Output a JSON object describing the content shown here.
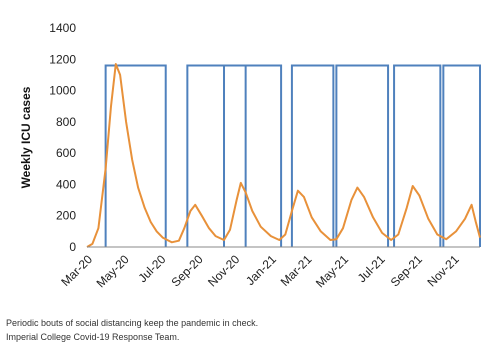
{
  "chart_data": {
    "type": "line",
    "ylabel": "Weekly ICU cases",
    "ylim": [
      0,
      1400
    ],
    "yticks": [
      "0",
      "200",
      "400",
      "600",
      "800",
      "1000",
      "1200",
      "1400"
    ],
    "xticks": [
      "Mar-20",
      "May-20",
      "Jul-20",
      "Sep-20",
      "Nov-20",
      "Jan-21",
      "Mar-21",
      "May-21",
      "Jul-21",
      "Sep-21",
      "Nov-21"
    ],
    "xlim": [
      "2020-03-01",
      "2021-12-15"
    ],
    "grid": false,
    "legend": "none",
    "series": [
      {
        "kind": "step",
        "color": "#4f81bd",
        "intervals": [
          {
            "on": "2020-04-01",
            "off": "2020-07-10",
            "level": 1160
          },
          {
            "on": "2020-08-15",
            "off": "2020-11-20",
            "level": 1160
          },
          {
            "on": "2020-10-15",
            "off": "2021-01-18",
            "level": 1160
          },
          {
            "on": "2021-02-05",
            "off": "2021-04-15",
            "level": 1160
          },
          {
            "on": "2021-04-20",
            "off": "2021-07-15",
            "level": 1160
          },
          {
            "on": "2021-07-25",
            "off": "2021-10-10",
            "level": 1160
          },
          {
            "on": "2021-10-15",
            "off": "2021-12-15",
            "level": 1160
          }
        ]
      },
      {
        "kind": "line",
        "color": "#e8913a",
        "points": [
          [
            "2020-03-01",
            0
          ],
          [
            "2020-03-10",
            20
          ],
          [
            "2020-03-20",
            120
          ],
          [
            "2020-04-01",
            500
          ],
          [
            "2020-04-10",
            900
          ],
          [
            "2020-04-18",
            1170
          ],
          [
            "2020-04-25",
            1100
          ],
          [
            "2020-05-05",
            800
          ],
          [
            "2020-05-15",
            560
          ],
          [
            "2020-05-25",
            380
          ],
          [
            "2020-06-05",
            250
          ],
          [
            "2020-06-15",
            160
          ],
          [
            "2020-06-25",
            100
          ],
          [
            "2020-07-05",
            60
          ],
          [
            "2020-07-20",
            30
          ],
          [
            "2020-08-01",
            40
          ],
          [
            "2020-08-10",
            120
          ],
          [
            "2020-08-20",
            230
          ],
          [
            "2020-08-28",
            270
          ],
          [
            "2020-09-08",
            200
          ],
          [
            "2020-09-20",
            120
          ],
          [
            "2020-10-01",
            70
          ],
          [
            "2020-10-15",
            45
          ],
          [
            "2020-10-25",
            110
          ],
          [
            "2020-11-05",
            300
          ],
          [
            "2020-11-12",
            410
          ],
          [
            "2020-11-20",
            350
          ],
          [
            "2020-12-01",
            230
          ],
          [
            "2020-12-15",
            130
          ],
          [
            "2021-01-01",
            70
          ],
          [
            "2021-01-15",
            45
          ],
          [
            "2021-01-25",
            80
          ],
          [
            "2021-02-05",
            230
          ],
          [
            "2021-02-15",
            360
          ],
          [
            "2021-02-25",
            320
          ],
          [
            "2021-03-10",
            190
          ],
          [
            "2021-03-25",
            100
          ],
          [
            "2021-04-10",
            45
          ],
          [
            "2021-04-20",
            50
          ],
          [
            "2021-05-01",
            120
          ],
          [
            "2021-05-15",
            300
          ],
          [
            "2021-05-25",
            380
          ],
          [
            "2021-06-05",
            320
          ],
          [
            "2021-06-20",
            190
          ],
          [
            "2021-07-05",
            90
          ],
          [
            "2021-07-20",
            45
          ],
          [
            "2021-08-01",
            80
          ],
          [
            "2021-08-15",
            250
          ],
          [
            "2021-08-25",
            390
          ],
          [
            "2021-09-05",
            330
          ],
          [
            "2021-09-20",
            180
          ],
          [
            "2021-10-05",
            80
          ],
          [
            "2021-10-20",
            50
          ],
          [
            "2021-11-05",
            100
          ],
          [
            "2021-11-20",
            180
          ],
          [
            "2021-12-01",
            270
          ],
          [
            "2021-12-08",
            160
          ],
          [
            "2021-12-15",
            60
          ]
        ]
      }
    ]
  },
  "caption": {
    "line1": "Periodic bouts of social distancing keep the pandemic in check.",
    "line2": "Imperial College Covid-19 Response Team."
  }
}
